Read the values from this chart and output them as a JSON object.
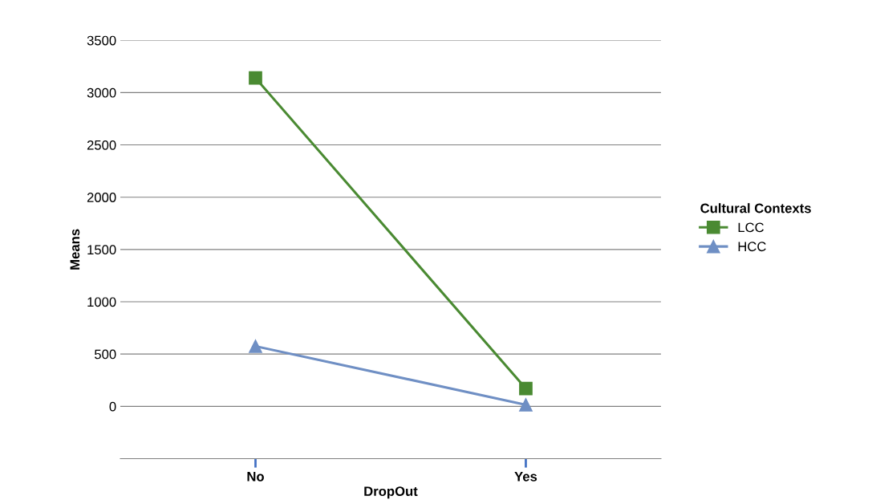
{
  "chart_data": {
    "type": "line",
    "xlabel": "DropOut",
    "ylabel": "Means",
    "legend_title": "Cultural Contexts",
    "categories": [
      "No",
      "Yes"
    ],
    "series": [
      {
        "name": "LCC",
        "color": "#4a8a32",
        "values": [
          3140,
          170
        ],
        "marker": "square"
      },
      {
        "name": "HCC",
        "color": "#6f8fc4",
        "values": [
          575,
          15
        ],
        "marker": "triangle"
      }
    ],
    "ylim": [
      -500,
      3500
    ],
    "yticks": [
      0,
      500,
      1000,
      1500,
      2000,
      2500,
      3000,
      3500
    ],
    "grid": "y",
    "legend": "right",
    "line_style": "solid"
  }
}
